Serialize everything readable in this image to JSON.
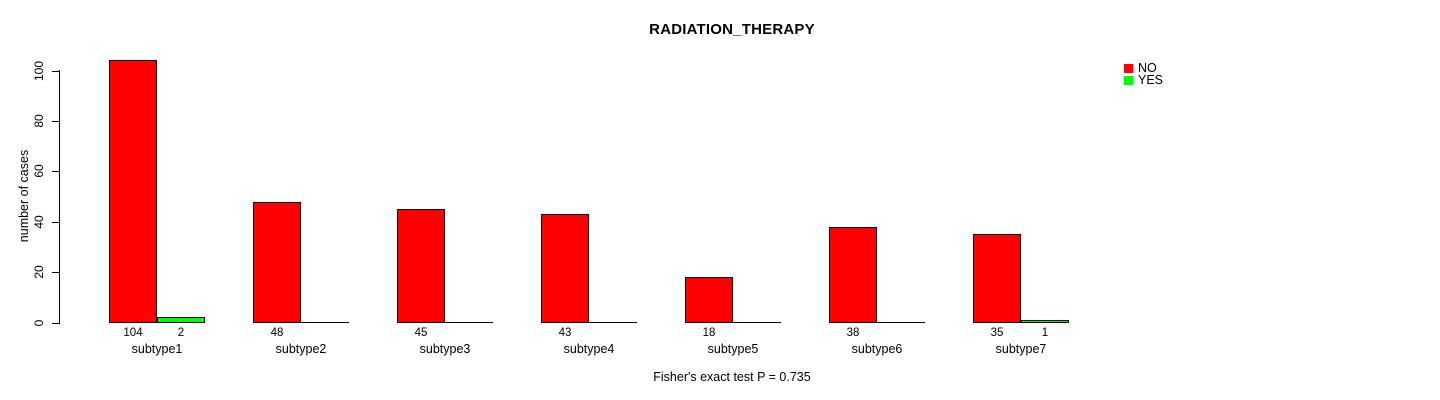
{
  "page": {
    "background": "#FFFFFF"
  },
  "chart_data": {
    "type": "bar",
    "title": "RADIATION_THERAPY",
    "xlabel": "",
    "ylabel": "number of cases",
    "caption": "Fisher's exact test P = 0.735",
    "categories": [
      "subtype1",
      "subtype2",
      "subtype3",
      "subtype4",
      "subtype5",
      "subtype6",
      "subtype7"
    ],
    "series": [
      {
        "name": "NO",
        "color": "#FF0000",
        "values": [
          104,
          48,
          45,
          43,
          18,
          38,
          35
        ],
        "bar_labels": [
          "104",
          "48",
          "45",
          "43",
          "18",
          "38",
          "35"
        ]
      },
      {
        "name": "YES",
        "color": "#00FF00",
        "values": [
          2,
          0,
          0,
          0,
          0,
          0,
          1
        ],
        "bar_labels": [
          "2",
          "",
          "",
          "",
          "",
          "",
          "1"
        ]
      }
    ],
    "yticks": [
      0,
      20,
      40,
      60,
      80,
      100
    ],
    "ylim": [
      0,
      110
    ],
    "grid": false,
    "bar_border_color": "#000000",
    "axis_color": "#000000",
    "legend": {
      "position": "top-right",
      "entries": [
        {
          "label": "NO",
          "color": "#FF0000"
        },
        {
          "label": "YES",
          "color": "#00FF00"
        }
      ]
    }
  }
}
